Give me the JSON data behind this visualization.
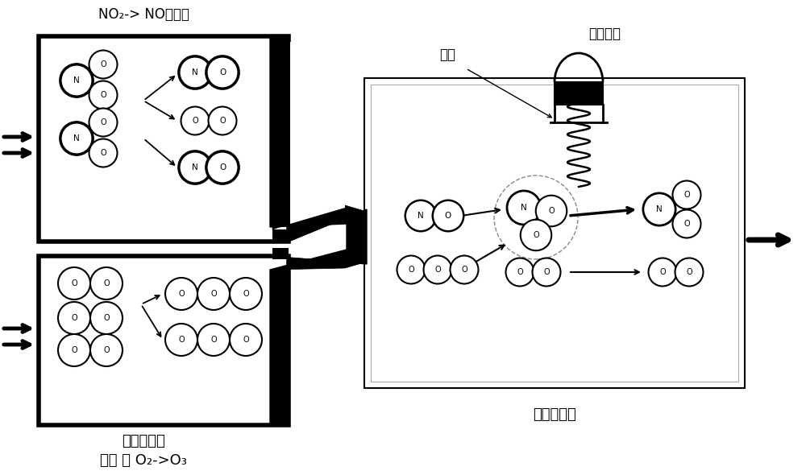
{
  "title_no2": "NO₂-> NO转化器",
  "label_ozone_gen": "臭氧发生器",
  "label_air": "空气 或 O₂->O₃",
  "label_red_light": "红灯",
  "label_detector": "光检波器",
  "label_chem_room": "化学发光室",
  "bg_color": "#ffffff"
}
